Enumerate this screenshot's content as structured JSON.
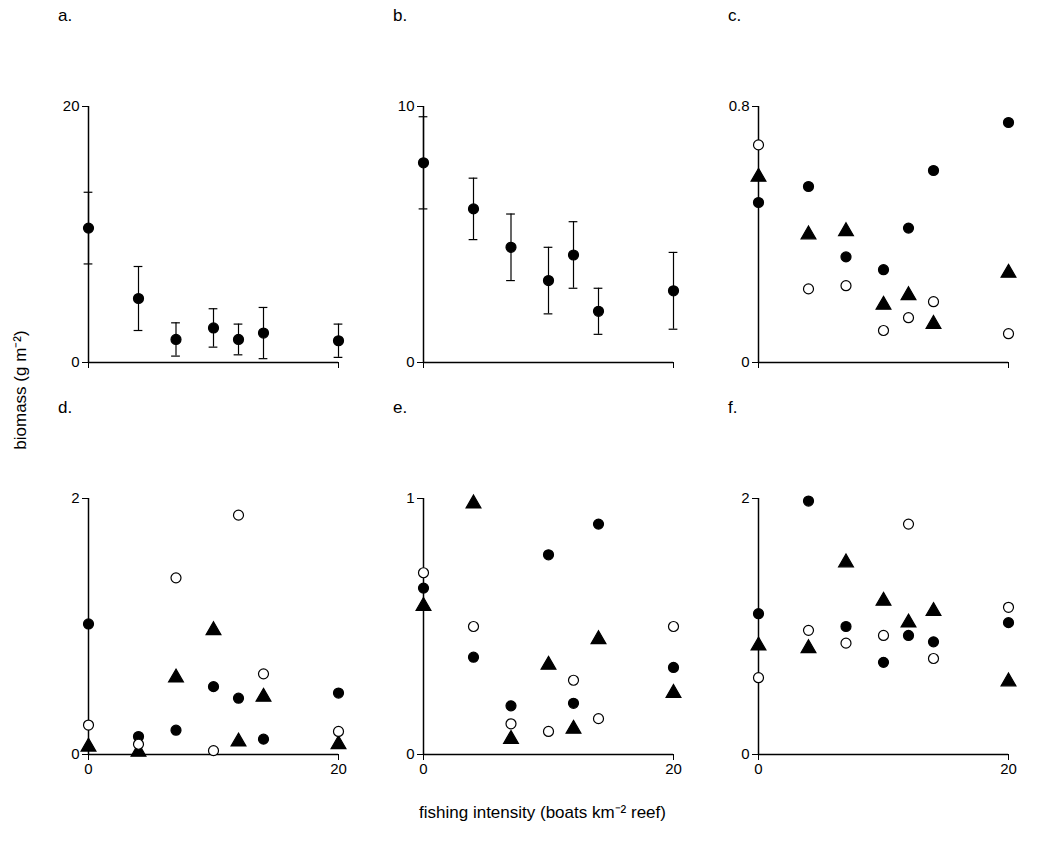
{
  "chart_data": [
    {
      "type": "scatter",
      "title": "a.",
      "x": [
        0,
        4,
        7,
        10,
        12,
        14,
        20
      ],
      "values": [
        10.5,
        5,
        1.8,
        2.7,
        1.8,
        2.3,
        1.7
      ],
      "error": [
        2.8,
        2.5,
        1.3,
        1.5,
        1.2,
        2,
        1.3
      ],
      "marker": "circle-filled",
      "xlim": [
        0,
        20
      ],
      "xticks": [
        0,
        20
      ],
      "ylim": [
        0,
        20
      ],
      "yticks": [
        0,
        20
      ],
      "tick_labels": "y"
    },
    {
      "type": "scatter",
      "title": "b.",
      "x": [
        0,
        4,
        7,
        10,
        12,
        14,
        20
      ],
      "values": [
        7.8,
        6,
        4.5,
        3.2,
        4.2,
        2,
        2.8
      ],
      "error": [
        1.8,
        1.2,
        1.3,
        1.3,
        1.3,
        0.9,
        1.5
      ],
      "marker": "circle-filled",
      "xlim": [
        0,
        20
      ],
      "xticks": [
        0,
        20
      ],
      "ylim": [
        0,
        10
      ],
      "yticks": [
        0,
        10
      ],
      "tick_labels": "y"
    },
    {
      "type": "scatter",
      "title": "c.",
      "x": [
        0,
        4,
        7,
        10,
        12,
        14,
        20
      ],
      "series": [
        {
          "marker": "circle-filled",
          "values": [
            0.5,
            0.55,
            0.33,
            0.29,
            0.42,
            0.6,
            0.75
          ]
        },
        {
          "marker": "triangle-filled",
          "values": [
            0.58,
            0.4,
            0.41,
            0.18,
            0.21,
            0.12,
            0.28
          ]
        },
        {
          "marker": "circle-open",
          "values": [
            0.68,
            0.23,
            0.24,
            0.1,
            0.14,
            0.19,
            0.09
          ]
        }
      ],
      "xlim": [
        0,
        20
      ],
      "xticks": [
        0,
        20
      ],
      "ylim": [
        0,
        0.8
      ],
      "yticks": [
        0,
        0.8
      ],
      "tick_labels": "y"
    },
    {
      "type": "scatter",
      "title": "d.",
      "x": [
        0,
        4,
        7,
        10,
        12,
        14,
        20
      ],
      "series": [
        {
          "marker": "circle-filled",
          "values": [
            1.02,
            0.14,
            0.19,
            0.53,
            0.44,
            0.12,
            0.48
          ]
        },
        {
          "marker": "triangle-filled",
          "values": [
            0.06,
            0.02,
            0.6,
            0.97,
            0.1,
            0.45,
            0.08
          ]
        },
        {
          "marker": "circle-open",
          "values": [
            0.23,
            0.08,
            1.38,
            0.03,
            1.87,
            0.63,
            0.18
          ]
        }
      ],
      "xlim": [
        0,
        20
      ],
      "xticks": [
        0,
        20
      ],
      "ylim": [
        0,
        2
      ],
      "yticks": [
        0,
        2
      ]
    },
    {
      "type": "scatter",
      "title": "e.",
      "x": [
        0,
        4,
        7,
        10,
        12,
        14,
        20
      ],
      "series": [
        {
          "marker": "circle-filled",
          "values": [
            0.65,
            0.38,
            0.19,
            0.78,
            0.2,
            0.9,
            0.34
          ]
        },
        {
          "marker": "triangle-filled",
          "values": [
            0.58,
            0.98,
            0.06,
            0.35,
            0.1,
            0.45,
            0.24
          ]
        },
        {
          "marker": "circle-open",
          "values": [
            0.71,
            0.5,
            0.12,
            0.09,
            0.29,
            0.14,
            0.5
          ]
        }
      ],
      "xlim": [
        0,
        20
      ],
      "xticks": [
        0,
        20
      ],
      "ylim": [
        0,
        1
      ],
      "yticks": [
        0,
        1
      ]
    },
    {
      "type": "scatter",
      "title": "f.",
      "x": [
        0,
        4,
        7,
        10,
        12,
        14,
        20
      ],
      "series": [
        {
          "marker": "circle-filled",
          "values": [
            1.1,
            1.98,
            1.0,
            0.72,
            0.93,
            0.88,
            1.03
          ]
        },
        {
          "marker": "triangle-filled",
          "values": [
            0.85,
            0.83,
            1.5,
            1.2,
            1.03,
            1.12,
            0.57
          ]
        },
        {
          "marker": "circle-open",
          "values": [
            0.6,
            0.97,
            0.87,
            0.93,
            1.8,
            0.75,
            1.15
          ]
        }
      ],
      "xlim": [
        0,
        20
      ],
      "xticks": [
        0,
        20
      ],
      "ylim": [
        0,
        2
      ],
      "yticks": [
        0,
        2
      ]
    }
  ],
  "shared": {
    "x_label": "fishing intensity (boats km⁻² reef)",
    "y_label": "biomass (g m⁻²)"
  }
}
